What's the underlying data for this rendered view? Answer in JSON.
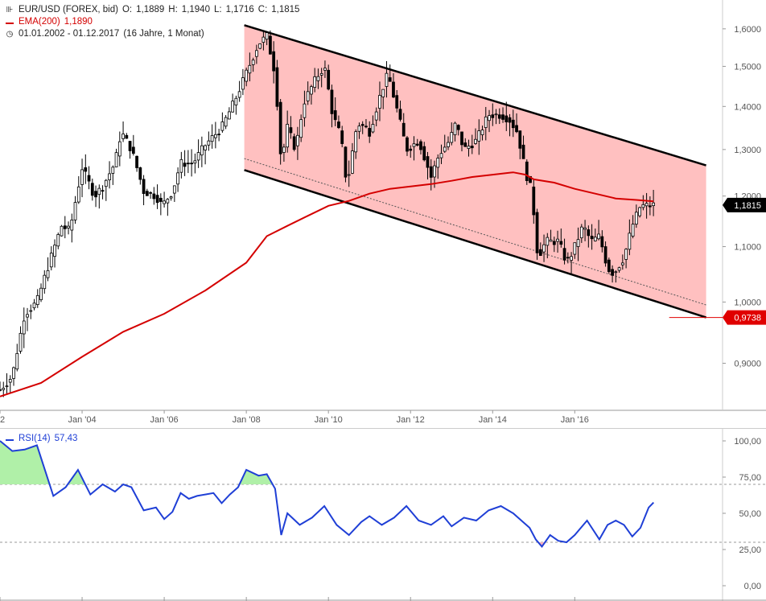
{
  "legend": {
    "symbol": "EUR/USD (FOREX, bid)",
    "open_label": "O:",
    "open": "1,1889",
    "high_label": "H:",
    "high": "1,1940",
    "low_label": "L:",
    "low": "1,1716",
    "close_label": "C:",
    "close": "1,1815",
    "ema_name": "EMA(200)",
    "ema_value": "1,1890",
    "period": "01.01.2002 - 01.12.2017",
    "period_detail": "(16 Jahre, 1 Monat)"
  },
  "rsi_legend": {
    "name": "RSI(14)",
    "value": "57,43"
  },
  "colors": {
    "candle": "#000000",
    "ema": "#d40000",
    "channel_fill": "#ffc0c0",
    "rsi_line": "#1f3fd6",
    "rsi_overbought_fill": "#b0f0a8",
    "rsi_oversold_fill": "#f7b0c0",
    "last_price_tag": "#000000",
    "target_tag": "#e00000"
  },
  "chart_data": [
    {
      "type": "candlestick",
      "x_range": [
        2002.0,
        2019.6
      ],
      "y_range": [
        0.83,
        1.64
      ],
      "y_scale": "log",
      "y_ticks": [
        {
          "value": 1.6,
          "label": "1,6000"
        },
        {
          "value": 1.5,
          "label": "1,5000"
        },
        {
          "value": 1.4,
          "label": "1,4000"
        },
        {
          "value": 1.3,
          "label": "1,3000"
        },
        {
          "value": 1.2,
          "label": "1,2000"
        },
        {
          "value": 1.1,
          "label": "1,1000"
        },
        {
          "value": 1.0,
          "label": "1,0000"
        },
        {
          "value": 0.9,
          "label": "0,9000"
        }
      ],
      "x_ticks": [
        {
          "value": 2002.0,
          "label": "2"
        },
        {
          "value": 2004.0,
          "label": "Jan '04"
        },
        {
          "value": 2006.0,
          "label": "Jan '06"
        },
        {
          "value": 2008.0,
          "label": "Jan '08"
        },
        {
          "value": 2010.0,
          "label": "Jan '10"
        },
        {
          "value": 2012.0,
          "label": "Jan '12"
        },
        {
          "value": 2014.0,
          "label": "Jan '14"
        },
        {
          "value": 2016.0,
          "label": "Jan '16"
        }
      ],
      "price_path": [
        [
          2002.0,
          0.86
        ],
        [
          2002.3,
          0.88
        ],
        [
          2002.6,
          0.98
        ],
        [
          2002.9,
          1.0
        ],
        [
          2003.2,
          1.07
        ],
        [
          2003.5,
          1.14
        ],
        [
          2003.7,
          1.13
        ],
        [
          2004.0,
          1.26
        ],
        [
          2004.3,
          1.2
        ],
        [
          2004.5,
          1.22
        ],
        [
          2004.8,
          1.27
        ],
        [
          2004.95,
          1.34
        ],
        [
          2005.2,
          1.3
        ],
        [
          2005.5,
          1.21
        ],
        [
          2005.8,
          1.2
        ],
        [
          2005.95,
          1.18
        ],
        [
          2006.2,
          1.21
        ],
        [
          2006.4,
          1.27
        ],
        [
          2006.7,
          1.27
        ],
        [
          2007.0,
          1.31
        ],
        [
          2007.4,
          1.35
        ],
        [
          2007.7,
          1.41
        ],
        [
          2007.95,
          1.47
        ],
        [
          2008.3,
          1.56
        ],
        [
          2008.5,
          1.58
        ],
        [
          2008.7,
          1.48
        ],
        [
          2008.85,
          1.27
        ],
        [
          2009.0,
          1.35
        ],
        [
          2009.2,
          1.3
        ],
        [
          2009.4,
          1.41
        ],
        [
          2009.7,
          1.47
        ],
        [
          2009.9,
          1.5
        ],
        [
          2010.1,
          1.38
        ],
        [
          2010.3,
          1.33
        ],
        [
          2010.45,
          1.22
        ],
        [
          2010.7,
          1.36
        ],
        [
          2010.9,
          1.35
        ],
        [
          2011.0,
          1.34
        ],
        [
          2011.3,
          1.44
        ],
        [
          2011.45,
          1.48
        ],
        [
          2011.7,
          1.38
        ],
        [
          2011.9,
          1.3
        ],
        [
          2012.2,
          1.32
        ],
        [
          2012.5,
          1.24
        ],
        [
          2012.7,
          1.29
        ],
        [
          2012.95,
          1.32
        ],
        [
          2013.1,
          1.36
        ],
        [
          2013.3,
          1.3
        ],
        [
          2013.6,
          1.32
        ],
        [
          2013.9,
          1.38
        ],
        [
          2014.2,
          1.38
        ],
        [
          2014.4,
          1.37
        ],
        [
          2014.6,
          1.34
        ],
        [
          2014.8,
          1.25
        ],
        [
          2014.95,
          1.21
        ],
        [
          2015.1,
          1.08
        ],
        [
          2015.3,
          1.11
        ],
        [
          2015.6,
          1.11
        ],
        [
          2015.8,
          1.07
        ],
        [
          2015.95,
          1.09
        ],
        [
          2016.2,
          1.14
        ],
        [
          2016.4,
          1.11
        ],
        [
          2016.6,
          1.12
        ],
        [
          2016.8,
          1.06
        ],
        [
          2016.95,
          1.05
        ],
        [
          2017.2,
          1.08
        ],
        [
          2017.4,
          1.14
        ],
        [
          2017.6,
          1.18
        ],
        [
          2017.8,
          1.18
        ],
        [
          2017.92,
          1.1815
        ]
      ],
      "ema_path": [
        [
          2002.0,
          0.85
        ],
        [
          2003.0,
          0.87
        ],
        [
          2004.0,
          0.91
        ],
        [
          2005.0,
          0.95
        ],
        [
          2006.0,
          0.98
        ],
        [
          2007.0,
          1.02
        ],
        [
          2008.0,
          1.07
        ],
        [
          2008.5,
          1.12
        ],
        [
          2009.0,
          1.14
        ],
        [
          2009.5,
          1.16
        ],
        [
          2010.0,
          1.18
        ],
        [
          2010.5,
          1.19
        ],
        [
          2011.0,
          1.205
        ],
        [
          2011.5,
          1.215
        ],
        [
          2012.0,
          1.22
        ],
        [
          2012.5,
          1.225
        ],
        [
          2013.0,
          1.232
        ],
        [
          2013.5,
          1.24
        ],
        [
          2014.0,
          1.245
        ],
        [
          2014.5,
          1.25
        ],
        [
          2014.8,
          1.245
        ],
        [
          2015.0,
          1.235
        ],
        [
          2015.5,
          1.228
        ],
        [
          2016.0,
          1.215
        ],
        [
          2016.5,
          1.205
        ],
        [
          2017.0,
          1.195
        ],
        [
          2017.5,
          1.192
        ],
        [
          2017.92,
          1.189
        ]
      ],
      "channel_upper": [
        [
          2007.95,
          1.61
        ],
        [
          2019.2,
          1.265
        ]
      ],
      "channel_lower": [
        [
          2007.95,
          1.255
        ],
        [
          2019.2,
          0.9738
        ]
      ],
      "channel_mid_dotted": [
        [
          2007.95,
          1.28
        ],
        [
          2019.2,
          0.995
        ]
      ],
      "target_level": {
        "value": 0.9738,
        "label": "0,9738",
        "x_start": 2018.3
      },
      "last_price": {
        "value": 1.1815,
        "label": "1,1815"
      }
    },
    {
      "type": "line",
      "name": "RSI(14)",
      "x_range": [
        2002.0,
        2019.6
      ],
      "y_range": [
        0,
        100
      ],
      "y_ticks": [
        {
          "value": 100,
          "label": "100,00"
        },
        {
          "value": 75,
          "label": "75,00"
        },
        {
          "value": 50,
          "label": "50,00"
        },
        {
          "value": 25,
          "label": "25,00"
        },
        {
          "value": 0,
          "label": "0,00"
        }
      ],
      "overbought": 70,
      "oversold": 30,
      "x": [
        2002.0,
        2002.3,
        2002.6,
        2002.9,
        2003.3,
        2003.6,
        2003.9,
        2004.2,
        2004.5,
        2004.8,
        2005.0,
        2005.2,
        2005.5,
        2005.8,
        2006.0,
        2006.2,
        2006.4,
        2006.6,
        2006.8,
        2007.0,
        2007.2,
        2007.4,
        2007.6,
        2007.8,
        2008.0,
        2008.3,
        2008.5,
        2008.7,
        2008.85,
        2009.0,
        2009.3,
        2009.6,
        2009.9,
        2010.2,
        2010.5,
        2010.8,
        2011.0,
        2011.3,
        2011.6,
        2011.9,
        2012.2,
        2012.5,
        2012.8,
        2013.0,
        2013.3,
        2013.6,
        2013.9,
        2014.2,
        2014.5,
        2014.7,
        2014.9,
        2015.05,
        2015.2,
        2015.4,
        2015.6,
        2015.8,
        2016.0,
        2016.3,
        2016.6,
        2016.8,
        2017.0,
        2017.2,
        2017.4,
        2017.6,
        2017.8,
        2017.92
      ],
      "y": [
        100,
        93,
        94,
        97,
        62,
        68,
        80,
        63,
        70,
        65,
        70,
        68,
        52,
        54,
        46,
        51,
        64,
        60,
        62,
        63,
        64,
        57,
        63,
        68,
        80,
        76,
        77,
        67,
        35,
        50,
        42,
        47,
        55,
        42,
        35,
        44,
        48,
        42,
        47,
        55,
        45,
        42,
        48,
        41,
        47,
        45,
        52,
        55,
        50,
        45,
        40,
        32,
        27,
        35,
        31,
        30,
        35,
        45,
        32,
        42,
        45,
        42,
        34,
        40,
        54,
        57.43
      ]
    }
  ]
}
